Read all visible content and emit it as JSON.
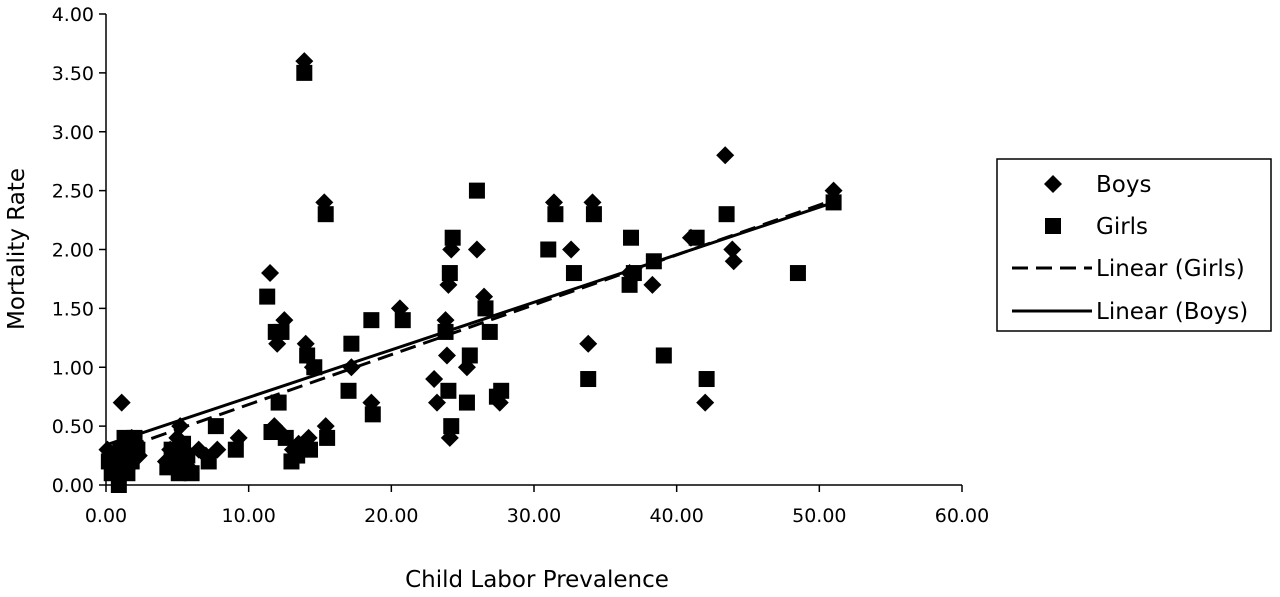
{
  "chart_data": {
    "type": "scatter",
    "title": "",
    "xlabel": "Child Labor Prevalence",
    "ylabel": "Mortality Rate",
    "xlim": [
      0,
      60
    ],
    "ylim": [
      0,
      4
    ],
    "x_ticks": [
      "0.00",
      "10.00",
      "20.00",
      "30.00",
      "40.00",
      "50.00",
      "60.00"
    ],
    "y_ticks": [
      "0.00",
      "0.50",
      "1.00",
      "1.50",
      "2.00",
      "2.50",
      "3.00",
      "3.50",
      "4.00"
    ],
    "grid": false,
    "legend_position": "right",
    "legend": [
      "Boys",
      "Girls",
      "Linear (Girls)",
      "Linear (Boys)"
    ],
    "series": [
      {
        "name": "Boys",
        "marker": "diamond",
        "points": [
          [
            0.1,
            0.3
          ],
          [
            0.4,
            0.2
          ],
          [
            0.6,
            0.1
          ],
          [
            0.9,
            0.25
          ],
          [
            1.1,
            0.7
          ],
          [
            1.2,
            0.2
          ],
          [
            1.4,
            0.3
          ],
          [
            1.6,
            0.15
          ],
          [
            1.8,
            0.4
          ],
          [
            2.0,
            0.35
          ],
          [
            2.3,
            0.25
          ],
          [
            4.2,
            0.2
          ],
          [
            4.5,
            0.3
          ],
          [
            4.8,
            0.25
          ],
          [
            5.0,
            0.4
          ],
          [
            5.2,
            0.5
          ],
          [
            5.5,
            0.2
          ],
          [
            5.8,
            0.15
          ],
          [
            6.5,
            0.3
          ],
          [
            7.0,
            0.25
          ],
          [
            7.8,
            0.3
          ],
          [
            9.3,
            0.4
          ],
          [
            11.5,
            1.8
          ],
          [
            11.8,
            0.5
          ],
          [
            12.0,
            1.2
          ],
          [
            12.2,
            0.45
          ],
          [
            12.5,
            1.4
          ],
          [
            13.1,
            0.3
          ],
          [
            13.5,
            0.35
          ],
          [
            13.9,
            3.6
          ],
          [
            14.0,
            1.2
          ],
          [
            14.2,
            0.4
          ],
          [
            14.5,
            1.0
          ],
          [
            15.3,
            2.4
          ],
          [
            15.4,
            0.5
          ],
          [
            17.2,
            1.0
          ],
          [
            18.6,
            0.7
          ],
          [
            20.6,
            1.5
          ],
          [
            23.0,
            0.9
          ],
          [
            23.2,
            0.7
          ],
          [
            23.8,
            1.4
          ],
          [
            23.9,
            1.1
          ],
          [
            24.0,
            1.7
          ],
          [
            24.1,
            0.4
          ],
          [
            24.2,
            2.0
          ],
          [
            25.3,
            1.0
          ],
          [
            26.0,
            2.0
          ],
          [
            26.5,
            1.6
          ],
          [
            27.6,
            0.7
          ],
          [
            31.4,
            2.4
          ],
          [
            32.6,
            2.0
          ],
          [
            33.8,
            1.2
          ],
          [
            34.1,
            2.4
          ],
          [
            36.7,
            1.8
          ],
          [
            38.3,
            1.7
          ],
          [
            41.0,
            2.1
          ],
          [
            42.0,
            0.7
          ],
          [
            43.4,
            2.8
          ],
          [
            43.9,
            2.0
          ],
          [
            44.0,
            1.9
          ],
          [
            51.0,
            2.5
          ]
        ]
      },
      {
        "name": "Girls",
        "marker": "square",
        "points": [
          [
            0.2,
            0.2
          ],
          [
            0.4,
            0.1
          ],
          [
            0.7,
            0.15
          ],
          [
            0.9,
            0.0
          ],
          [
            1.0,
            0.3
          ],
          [
            1.3,
            0.4
          ],
          [
            1.5,
            0.1
          ],
          [
            1.8,
            0.2
          ],
          [
            2.0,
            0.4
          ],
          [
            2.2,
            0.3
          ],
          [
            4.3,
            0.15
          ],
          [
            4.6,
            0.3
          ],
          [
            4.9,
            0.2
          ],
          [
            5.1,
            0.1
          ],
          [
            5.4,
            0.35
          ],
          [
            5.7,
            0.25
          ],
          [
            6.0,
            0.1
          ],
          [
            7.2,
            0.2
          ],
          [
            7.7,
            0.5
          ],
          [
            9.1,
            0.3
          ],
          [
            11.3,
            1.6
          ],
          [
            11.6,
            0.45
          ],
          [
            11.9,
            1.3
          ],
          [
            12.1,
            0.7
          ],
          [
            12.3,
            1.3
          ],
          [
            12.6,
            0.4
          ],
          [
            13.0,
            0.2
          ],
          [
            13.4,
            0.25
          ],
          [
            13.9,
            3.5
          ],
          [
            14.1,
            1.1
          ],
          [
            14.3,
            0.3
          ],
          [
            14.6,
            1.0
          ],
          [
            15.4,
            2.3
          ],
          [
            15.5,
            0.4
          ],
          [
            17.2,
            1.2
          ],
          [
            17.0,
            0.8
          ],
          [
            18.6,
            1.4
          ],
          [
            18.7,
            0.6
          ],
          [
            20.8,
            1.4
          ],
          [
            23.8,
            1.3
          ],
          [
            24.0,
            0.8
          ],
          [
            24.1,
            1.8
          ],
          [
            24.2,
            0.5
          ],
          [
            24.3,
            2.1
          ],
          [
            25.3,
            0.7
          ],
          [
            25.5,
            1.1
          ],
          [
            26.0,
            2.5
          ],
          [
            26.6,
            1.5
          ],
          [
            26.9,
            1.3
          ],
          [
            27.4,
            0.75
          ],
          [
            27.7,
            0.8
          ],
          [
            31.0,
            2.0
          ],
          [
            31.5,
            2.3
          ],
          [
            32.8,
            1.8
          ],
          [
            33.8,
            0.9
          ],
          [
            34.2,
            2.3
          ],
          [
            36.7,
            1.7
          ],
          [
            36.8,
            2.1
          ],
          [
            37.0,
            1.8
          ],
          [
            38.4,
            1.9
          ],
          [
            39.1,
            1.1
          ],
          [
            41.4,
            2.1
          ],
          [
            42.1,
            0.9
          ],
          [
            43.5,
            2.3
          ],
          [
            48.5,
            1.8
          ],
          [
            51.0,
            2.4
          ]
        ]
      }
    ],
    "trendlines": [
      {
        "name": "Linear (Girls)",
        "style": "dashed",
        "x": [
          0,
          51
        ],
        "y": [
          0.26,
          2.42
        ]
      },
      {
        "name": "Linear (Boys)",
        "style": "solid",
        "x": [
          0,
          51
        ],
        "y": [
          0.34,
          2.4
        ]
      }
    ]
  }
}
